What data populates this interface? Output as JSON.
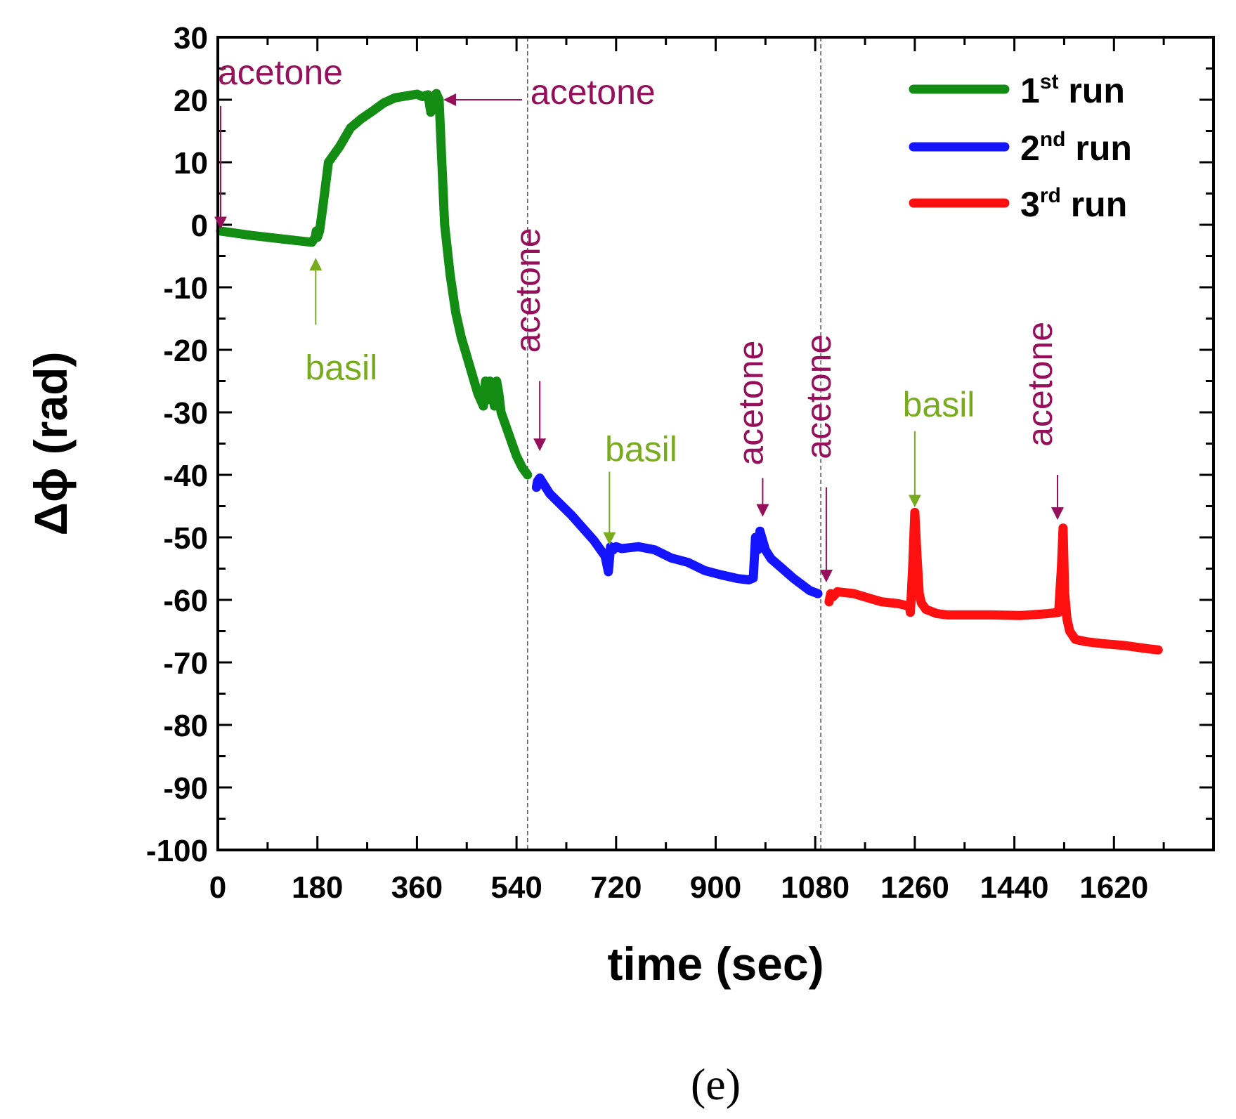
{
  "chart_data": {
    "type": "line",
    "xlabel": "time (sec)",
    "ylabel": "Δϕ (rad)",
    "xlim": [
      0,
      1800
    ],
    "ylim": [
      -100,
      30
    ],
    "xticks": [
      0,
      180,
      360,
      540,
      720,
      900,
      1080,
      1260,
      1440,
      1620
    ],
    "yticks": [
      30,
      20,
      10,
      0,
      -10,
      -20,
      -30,
      -40,
      -50,
      -60,
      -70,
      -80,
      -90,
      -100
    ],
    "xtick_labels": [
      "0",
      "180",
      "360",
      "540",
      "720",
      "900",
      "1080",
      "1260",
      "1440",
      "1620"
    ],
    "ytick_labels": [
      "30",
      "20",
      "10",
      "0",
      "-10",
      "-20",
      "-30",
      "-40",
      "-50",
      "-60",
      "-70",
      "-80",
      "-90",
      "-100"
    ],
    "run_separators": [
      560,
      1090
    ],
    "series": [
      {
        "name": "1st run",
        "base": "1",
        "sup": "st",
        "suffix": " run",
        "color": "#138c13",
        "x": [
          5,
          60,
          120,
          170,
          176,
          178,
          180,
          184,
          190,
          200,
          220,
          240,
          260,
          280,
          300,
          320,
          340,
          360,
          370,
          380,
          385,
          388,
          392,
          395,
          400,
          405,
          410,
          420,
          430,
          440,
          450,
          460,
          470,
          480,
          484,
          488,
          492,
          496,
          500,
          504,
          508,
          512,
          516,
          520,
          530,
          540,
          550,
          560
        ],
        "y": [
          -1,
          -1.7,
          -2.3,
          -2.8,
          -2,
          -1,
          -2,
          -1,
          3,
          10,
          12.5,
          15.5,
          17,
          18.2,
          19.5,
          20.3,
          20.6,
          20.9,
          20.5,
          20.8,
          18,
          20,
          19,
          21,
          20,
          10,
          0,
          -8,
          -14,
          -18,
          -21,
          -24,
          -27,
          -29,
          -25,
          -28,
          -25,
          -27,
          -29,
          -25,
          -27,
          -30,
          -31,
          -32,
          -34.5,
          -37,
          -38.8,
          -40
        ]
      },
      {
        "name": "2nd run",
        "base": "2",
        "sup": "nd",
        "suffix": " run",
        "color": "#1414ff",
        "x": [
          576,
          578,
          582,
          600,
          640,
          680,
          700,
          706,
          710,
          715,
          720,
          730,
          760,
          790,
          820,
          850,
          880,
          910,
          940,
          960,
          968,
          972,
          976,
          980,
          985,
          990,
          1000,
          1040,
          1070,
          1085
        ],
        "y": [
          -42,
          -41,
          -40.5,
          -43,
          -46.5,
          -50.5,
          -53,
          -55.5,
          -51.5,
          -52,
          -51.5,
          -51.8,
          -51.5,
          -52,
          -53.3,
          -54,
          -55.3,
          -56,
          -56.6,
          -56.8,
          -56.5,
          -50,
          -52,
          -49,
          -50.5,
          -52,
          -53.4,
          -56.5,
          -58.5,
          -59
        ]
      },
      {
        "name": "3rd run",
        "base": "3",
        "sup": "rd",
        "suffix": " run",
        "color": "#ff1010",
        "x": [
          1105,
          1108,
          1112,
          1120,
          1150,
          1180,
          1200,
          1230,
          1250,
          1252,
          1256,
          1260,
          1264,
          1268,
          1272,
          1280,
          1300,
          1320,
          1350,
          1400,
          1450,
          1500,
          1520,
          1525,
          1528,
          1531,
          1535,
          1540,
          1550,
          1570,
          1600,
          1640,
          1680,
          1700
        ],
        "y": [
          -60.3,
          -59,
          -59.5,
          -58.7,
          -59,
          -59.8,
          -60.3,
          -60.6,
          -61,
          -62,
          -55,
          -46,
          -53,
          -59,
          -60.5,
          -61.5,
          -62.2,
          -62.4,
          -62.4,
          -62.4,
          -62.5,
          -62.2,
          -62,
          -55,
          -48.5,
          -59,
          -63,
          -65,
          -66.3,
          -66.7,
          -67,
          -67.3,
          -67.8,
          -68
        ]
      }
    ],
    "annotations": [
      {
        "text": "acetone",
        "color": "#960f5a",
        "label_x": 0,
        "label_y": 22.5,
        "vertical": false,
        "anchor": "start",
        "arrow": [
          [
            5,
            19
          ],
          [
            5,
            -0.5
          ]
        ]
      },
      {
        "text": "acetone",
        "color": "#960f5a",
        "label_x": 565,
        "label_y": 19.3,
        "vertical": false,
        "anchor": "start",
        "arrow": [
          [
            550,
            20
          ],
          [
            410,
            20
          ]
        ]
      },
      {
        "text": "basil",
        "color": "#79ab1f",
        "label_x": 158,
        "label_y": -24.8,
        "vertical": false,
        "anchor": "start",
        "arrow": [
          [
            177,
            -16
          ],
          [
            177,
            -5.5
          ]
        ]
      },
      {
        "text": "acetone",
        "color": "#960f5a",
        "label_x": 582,
        "label_y": -10.5,
        "vertical": true,
        "anchor": "middle",
        "arrow": [
          [
            582,
            -25
          ],
          [
            582,
            -36
          ]
        ]
      },
      {
        "text": "basil",
        "color": "#79ab1f",
        "label_x": 700,
        "label_y": -37.8,
        "vertical": false,
        "anchor": "start",
        "arrow": [
          [
            708,
            -39.5
          ],
          [
            708,
            -51
          ]
        ]
      },
      {
        "text": "acetone",
        "color": "#960f5a",
        "label_x": 985,
        "label_y": -28.5,
        "vertical": true,
        "anchor": "middle",
        "arrow": [
          [
            985,
            -40.5
          ],
          [
            985,
            -46.5
          ]
        ]
      },
      {
        "text": "acetone",
        "color": "#960f5a",
        "label_x": 1108,
        "label_y": -27.5,
        "vertical": true,
        "anchor": "middle",
        "arrow": [
          [
            1100,
            -42
          ],
          [
            1100,
            -57
          ]
        ]
      },
      {
        "text": "basil",
        "color": "#79ab1f",
        "label_x": 1238,
        "label_y": -30.7,
        "vertical": false,
        "anchor": "start",
        "arrow": [
          [
            1260,
            -33
          ],
          [
            1260,
            -45
          ]
        ]
      },
      {
        "text": "acetone",
        "color": "#960f5a",
        "label_x": 1508,
        "label_y": -25.5,
        "vertical": true,
        "anchor": "middle",
        "arrow": [
          [
            1518,
            -40
          ],
          [
            1518,
            -47
          ]
        ]
      }
    ]
  },
  "caption": "(e)"
}
